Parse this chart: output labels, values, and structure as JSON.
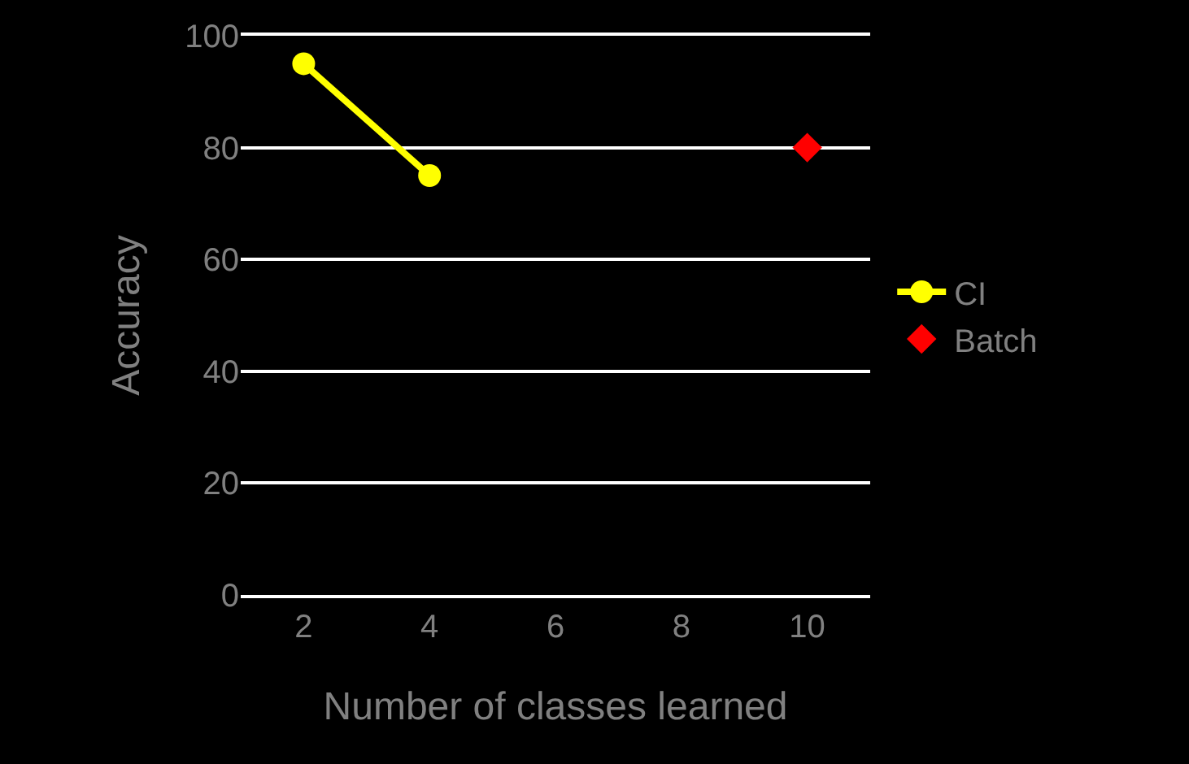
{
  "chart_data": {
    "type": "line",
    "xlabel": "Number of classes learned",
    "ylabel": "Accuracy",
    "categories": [
      "2",
      "4",
      "6",
      "8",
      "10"
    ],
    "series": [
      {
        "name": "CI",
        "color": "#ffff00",
        "marker": "circle",
        "line_style": "solid",
        "values": [
          95,
          75,
          null,
          null,
          null
        ]
      },
      {
        "name": "Batch",
        "type": "scatter",
        "color": "#ff0000",
        "marker": "diamond",
        "values": [
          null,
          null,
          null,
          null,
          80
        ]
      }
    ],
    "ylim": [
      0,
      100
    ],
    "yticks": [
      0,
      20,
      40,
      60,
      80,
      100
    ],
    "grid": "y",
    "legend": "right"
  }
}
